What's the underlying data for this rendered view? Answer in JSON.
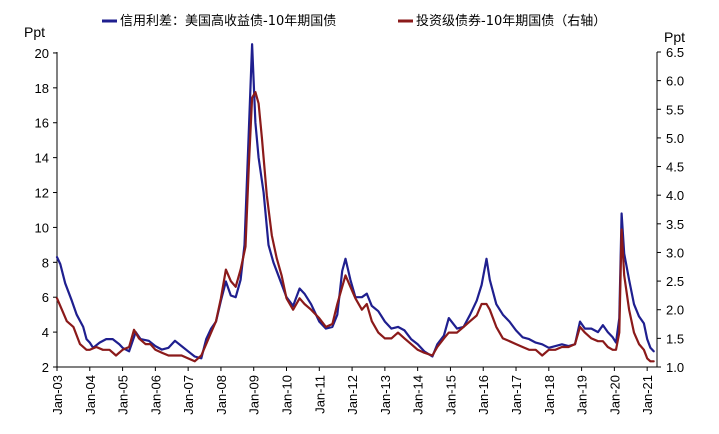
{
  "chart_data": {
    "type": "line",
    "left_axis_unit": "Ppt",
    "right_axis_unit": "Ppt",
    "ylim_left": [
      2,
      21
    ],
    "ylim_right": [
      1.0,
      6.5
    ],
    "left_ticks": [
      "2",
      "4",
      "6",
      "8",
      "10",
      "12",
      "14",
      "16",
      "18",
      "20"
    ],
    "right_ticks": [
      "1.0",
      "1.5",
      "2.0",
      "2.5",
      "3.0",
      "3.5",
      "4.0",
      "4.5",
      "5.0",
      "5.5",
      "6.0",
      "6.5"
    ],
    "x_ticks": [
      "Jan-03",
      "Jan-04",
      "Jan-05",
      "Jan-06",
      "Jan-07",
      "Jan-08",
      "Jan-09",
      "Jan-10",
      "Jan-11",
      "Jan-12",
      "Jan-13",
      "Jan-14",
      "Jan-15",
      "Jan-16",
      "Jan-17",
      "Jan-18",
      "Jan-19",
      "Jan-20",
      "Jan-21"
    ],
    "xlim": [
      2003.0,
      2021.3
    ],
    "grid": false,
    "legend_position": "top",
    "series": [
      {
        "name": "信用利差：美国高收益债-10年期国债",
        "axis": "left",
        "color": "#1F1F8F",
        "points": [
          [
            2003.0,
            8.3
          ],
          [
            2003.1,
            7.9
          ],
          [
            2003.25,
            6.8
          ],
          [
            2003.45,
            5.8
          ],
          [
            2003.6,
            5.0
          ],
          [
            2003.8,
            4.3
          ],
          [
            2003.9,
            3.6
          ],
          [
            2004.0,
            3.4
          ],
          [
            2004.1,
            3.1
          ],
          [
            2004.3,
            3.4
          ],
          [
            2004.5,
            3.6
          ],
          [
            2004.7,
            3.6
          ],
          [
            2004.9,
            3.3
          ],
          [
            2005.0,
            3.1
          ],
          [
            2005.2,
            2.9
          ],
          [
            2005.4,
            4.0
          ],
          [
            2005.55,
            3.6
          ],
          [
            2005.8,
            3.5
          ],
          [
            2006.0,
            3.2
          ],
          [
            2006.2,
            3.0
          ],
          [
            2006.4,
            3.1
          ],
          [
            2006.6,
            3.5
          ],
          [
            2006.8,
            3.2
          ],
          [
            2007.0,
            2.9
          ],
          [
            2007.2,
            2.6
          ],
          [
            2007.4,
            2.5
          ],
          [
            2007.55,
            3.6
          ],
          [
            2007.7,
            4.2
          ],
          [
            2007.85,
            4.6
          ],
          [
            2008.0,
            5.8
          ],
          [
            2008.15,
            6.9
          ],
          [
            2008.3,
            6.1
          ],
          [
            2008.45,
            6.0
          ],
          [
            2008.6,
            7.0
          ],
          [
            2008.72,
            9.0
          ],
          [
            2008.85,
            15.5
          ],
          [
            2008.95,
            20.5
          ],
          [
            2009.05,
            16.0
          ],
          [
            2009.15,
            14.0
          ],
          [
            2009.3,
            12.0
          ],
          [
            2009.45,
            9.0
          ],
          [
            2009.6,
            8.0
          ],
          [
            2009.8,
            7.0
          ],
          [
            2010.0,
            6.0
          ],
          [
            2010.2,
            5.5
          ],
          [
            2010.4,
            6.5
          ],
          [
            2010.55,
            6.2
          ],
          [
            2010.75,
            5.6
          ],
          [
            2011.0,
            4.6
          ],
          [
            2011.2,
            4.2
          ],
          [
            2011.4,
            4.3
          ],
          [
            2011.55,
            5.0
          ],
          [
            2011.7,
            7.5
          ],
          [
            2011.8,
            8.2
          ],
          [
            2011.95,
            7.0
          ],
          [
            2012.1,
            6.0
          ],
          [
            2012.3,
            6.0
          ],
          [
            2012.45,
            6.2
          ],
          [
            2012.6,
            5.5
          ],
          [
            2012.8,
            5.2
          ],
          [
            2013.0,
            4.6
          ],
          [
            2013.2,
            4.2
          ],
          [
            2013.4,
            4.3
          ],
          [
            2013.6,
            4.1
          ],
          [
            2013.8,
            3.6
          ],
          [
            2014.0,
            3.3
          ],
          [
            2014.2,
            2.9
          ],
          [
            2014.45,
            2.6
          ],
          [
            2014.6,
            3.3
          ],
          [
            2014.8,
            3.8
          ],
          [
            2014.95,
            4.8
          ],
          [
            2015.2,
            4.2
          ],
          [
            2015.4,
            4.3
          ],
          [
            2015.6,
            5.0
          ],
          [
            2015.8,
            5.8
          ],
          [
            2015.95,
            6.7
          ],
          [
            2016.1,
            8.2
          ],
          [
            2016.2,
            7.0
          ],
          [
            2016.4,
            5.6
          ],
          [
            2016.6,
            5.0
          ],
          [
            2016.8,
            4.6
          ],
          [
            2017.0,
            4.1
          ],
          [
            2017.2,
            3.7
          ],
          [
            2017.4,
            3.6
          ],
          [
            2017.6,
            3.4
          ],
          [
            2017.8,
            3.3
          ],
          [
            2018.0,
            3.1
          ],
          [
            2018.2,
            3.2
          ],
          [
            2018.4,
            3.3
          ],
          [
            2018.6,
            3.2
          ],
          [
            2018.8,
            3.3
          ],
          [
            2018.95,
            4.6
          ],
          [
            2019.1,
            4.2
          ],
          [
            2019.3,
            4.2
          ],
          [
            2019.5,
            4.0
          ],
          [
            2019.65,
            4.4
          ],
          [
            2019.8,
            4.0
          ],
          [
            2019.95,
            3.7
          ],
          [
            2020.05,
            3.4
          ],
          [
            2020.15,
            4.8
          ],
          [
            2020.22,
            10.8
          ],
          [
            2020.3,
            8.5
          ],
          [
            2020.45,
            7.0
          ],
          [
            2020.6,
            5.6
          ],
          [
            2020.75,
            4.9
          ],
          [
            2020.9,
            4.5
          ],
          [
            2021.0,
            3.6
          ],
          [
            2021.1,
            3.1
          ],
          [
            2021.2,
            2.9
          ]
        ]
      },
      {
        "name": "投资级债券-10年期国债（右轴）",
        "axis": "right",
        "color": "#8B1A1A",
        "points": [
          [
            2003.0,
            2.2
          ],
          [
            2003.15,
            2.0
          ],
          [
            2003.3,
            1.8
          ],
          [
            2003.5,
            1.7
          ],
          [
            2003.7,
            1.4
          ],
          [
            2003.9,
            1.3
          ],
          [
            2004.0,
            1.3
          ],
          [
            2004.2,
            1.35
          ],
          [
            2004.4,
            1.3
          ],
          [
            2004.6,
            1.3
          ],
          [
            2004.8,
            1.2
          ],
          [
            2005.0,
            1.3
          ],
          [
            2005.2,
            1.35
          ],
          [
            2005.35,
            1.65
          ],
          [
            2005.5,
            1.5
          ],
          [
            2005.7,
            1.4
          ],
          [
            2005.85,
            1.4
          ],
          [
            2006.0,
            1.3
          ],
          [
            2006.2,
            1.25
          ],
          [
            2006.4,
            1.2
          ],
          [
            2006.6,
            1.2
          ],
          [
            2006.8,
            1.2
          ],
          [
            2007.0,
            1.15
          ],
          [
            2007.2,
            1.1
          ],
          [
            2007.4,
            1.2
          ],
          [
            2007.55,
            1.4
          ],
          [
            2007.7,
            1.6
          ],
          [
            2007.85,
            1.8
          ],
          [
            2008.0,
            2.2
          ],
          [
            2008.15,
            2.7
          ],
          [
            2008.3,
            2.5
          ],
          [
            2008.45,
            2.4
          ],
          [
            2008.6,
            2.7
          ],
          [
            2008.75,
            3.1
          ],
          [
            2008.85,
            4.5
          ],
          [
            2008.95,
            5.7
          ],
          [
            2009.05,
            5.8
          ],
          [
            2009.15,
            5.6
          ],
          [
            2009.25,
            5.0
          ],
          [
            2009.4,
            4.0
          ],
          [
            2009.55,
            3.3
          ],
          [
            2009.7,
            2.9
          ],
          [
            2009.85,
            2.6
          ],
          [
            2010.0,
            2.2
          ],
          [
            2010.2,
            2.0
          ],
          [
            2010.4,
            2.2
          ],
          [
            2010.55,
            2.1
          ],
          [
            2010.75,
            2.0
          ],
          [
            2011.0,
            1.85
          ],
          [
            2011.2,
            1.7
          ],
          [
            2011.4,
            1.75
          ],
          [
            2011.55,
            2.1
          ],
          [
            2011.7,
            2.4
          ],
          [
            2011.8,
            2.6
          ],
          [
            2011.95,
            2.4
          ],
          [
            2012.1,
            2.2
          ],
          [
            2012.3,
            2.0
          ],
          [
            2012.45,
            2.1
          ],
          [
            2012.6,
            1.8
          ],
          [
            2012.8,
            1.6
          ],
          [
            2013.0,
            1.5
          ],
          [
            2013.2,
            1.5
          ],
          [
            2013.4,
            1.6
          ],
          [
            2013.6,
            1.5
          ],
          [
            2013.8,
            1.4
          ],
          [
            2014.0,
            1.3
          ],
          [
            2014.2,
            1.25
          ],
          [
            2014.45,
            1.2
          ],
          [
            2014.6,
            1.35
          ],
          [
            2014.8,
            1.5
          ],
          [
            2014.95,
            1.6
          ],
          [
            2015.2,
            1.6
          ],
          [
            2015.4,
            1.7
          ],
          [
            2015.6,
            1.8
          ],
          [
            2015.8,
            1.9
          ],
          [
            2015.95,
            2.1
          ],
          [
            2016.1,
            2.1
          ],
          [
            2016.2,
            2.0
          ],
          [
            2016.4,
            1.7
          ],
          [
            2016.6,
            1.5
          ],
          [
            2016.8,
            1.45
          ],
          [
            2017.0,
            1.4
          ],
          [
            2017.2,
            1.35
          ],
          [
            2017.4,
            1.3
          ],
          [
            2017.6,
            1.3
          ],
          [
            2017.8,
            1.2
          ],
          [
            2018.0,
            1.3
          ],
          [
            2018.2,
            1.3
          ],
          [
            2018.4,
            1.35
          ],
          [
            2018.6,
            1.35
          ],
          [
            2018.8,
            1.4
          ],
          [
            2018.95,
            1.7
          ],
          [
            2019.1,
            1.6
          ],
          [
            2019.3,
            1.5
          ],
          [
            2019.5,
            1.45
          ],
          [
            2019.65,
            1.45
          ],
          [
            2019.8,
            1.35
          ],
          [
            2019.95,
            1.3
          ],
          [
            2020.05,
            1.3
          ],
          [
            2020.15,
            1.6
          ],
          [
            2020.22,
            3.4
          ],
          [
            2020.3,
            2.6
          ],
          [
            2020.45,
            2.0
          ],
          [
            2020.6,
            1.6
          ],
          [
            2020.75,
            1.4
          ],
          [
            2020.9,
            1.3
          ],
          [
            2021.0,
            1.15
          ],
          [
            2021.1,
            1.1
          ],
          [
            2021.2,
            1.1
          ]
        ]
      }
    ]
  }
}
